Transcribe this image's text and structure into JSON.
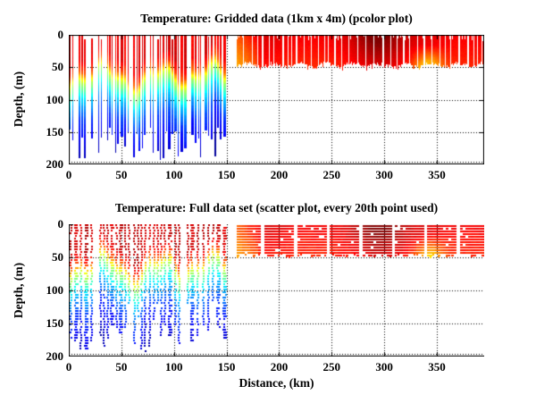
{
  "figure": {
    "background": "#ffffff",
    "text_color": "#000000",
    "axis_color": "#000000",
    "grid_style": "dotted"
  },
  "chart_data": [
    {
      "type": "pcolor",
      "title": "Temperature: Gridded data (1km x 4m) (pcolor plot)",
      "xlabel": "",
      "ylabel": "Depth, (m)",
      "xlim": [
        0,
        395
      ],
      "ylim": [
        200,
        0
      ],
      "y_axis_reversed": true,
      "xticks": [
        0,
        50,
        100,
        150,
        200,
        250,
        300,
        350
      ],
      "yticks": [
        0,
        50,
        100,
        150,
        200
      ],
      "grid": "dotted",
      "box": true,
      "colormap": "jet",
      "seed": 7
    },
    {
      "type": "scatter",
      "title": "Temperature: Full data set (scatter plot, every 20th point used)",
      "xlabel": "Distance, (km)",
      "ylabel": "Depth, (m)",
      "xlim": [
        0,
        395
      ],
      "ylim": [
        200,
        0
      ],
      "y_axis_reversed": true,
      "xticks": [
        0,
        50,
        100,
        150,
        200,
        250,
        300,
        350
      ],
      "yticks": [
        0,
        50,
        100,
        150,
        200
      ],
      "grid": "dotted",
      "box": false,
      "colormap": "jet",
      "seed": 42,
      "block_gaps_km": [
        183.5,
        214.5,
        245.5,
        276.5,
        307.5,
        338.5,
        369.5
      ]
    }
  ],
  "temperature_field": {
    "left_region": {
      "x_start_km": 0,
      "x_end_km": 151,
      "description": "full-depth temperature profiles, warm red surface layer over thermocline, cold blue at depth",
      "surface_value_pcolor": 0.9,
      "surface_value_scatter": 0.93,
      "mixed_layer_value_at_base": 0.8,
      "thermocline_mean_depth_m": 54,
      "thermocline_depth_range_m": [
        30,
        78
      ],
      "profile_bottom_depth_m": [
        140,
        195
      ]
    },
    "right_region": {
      "x_start_km": 160,
      "x_end_km": 395,
      "description": "shallow warm data only (0-50 m), red with dark maroon patch and orange/yellow areas",
      "max_depth_m": 50,
      "surface_value_base": 0.88,
      "orange_edge_km": [
        160,
        183
      ],
      "dark_patch_center_km": 293,
      "dark_patch_amplitude": 0.1,
      "yellow_bottom_center_km": 341,
      "yellow_bottom_amplitude": 0.2
    }
  }
}
